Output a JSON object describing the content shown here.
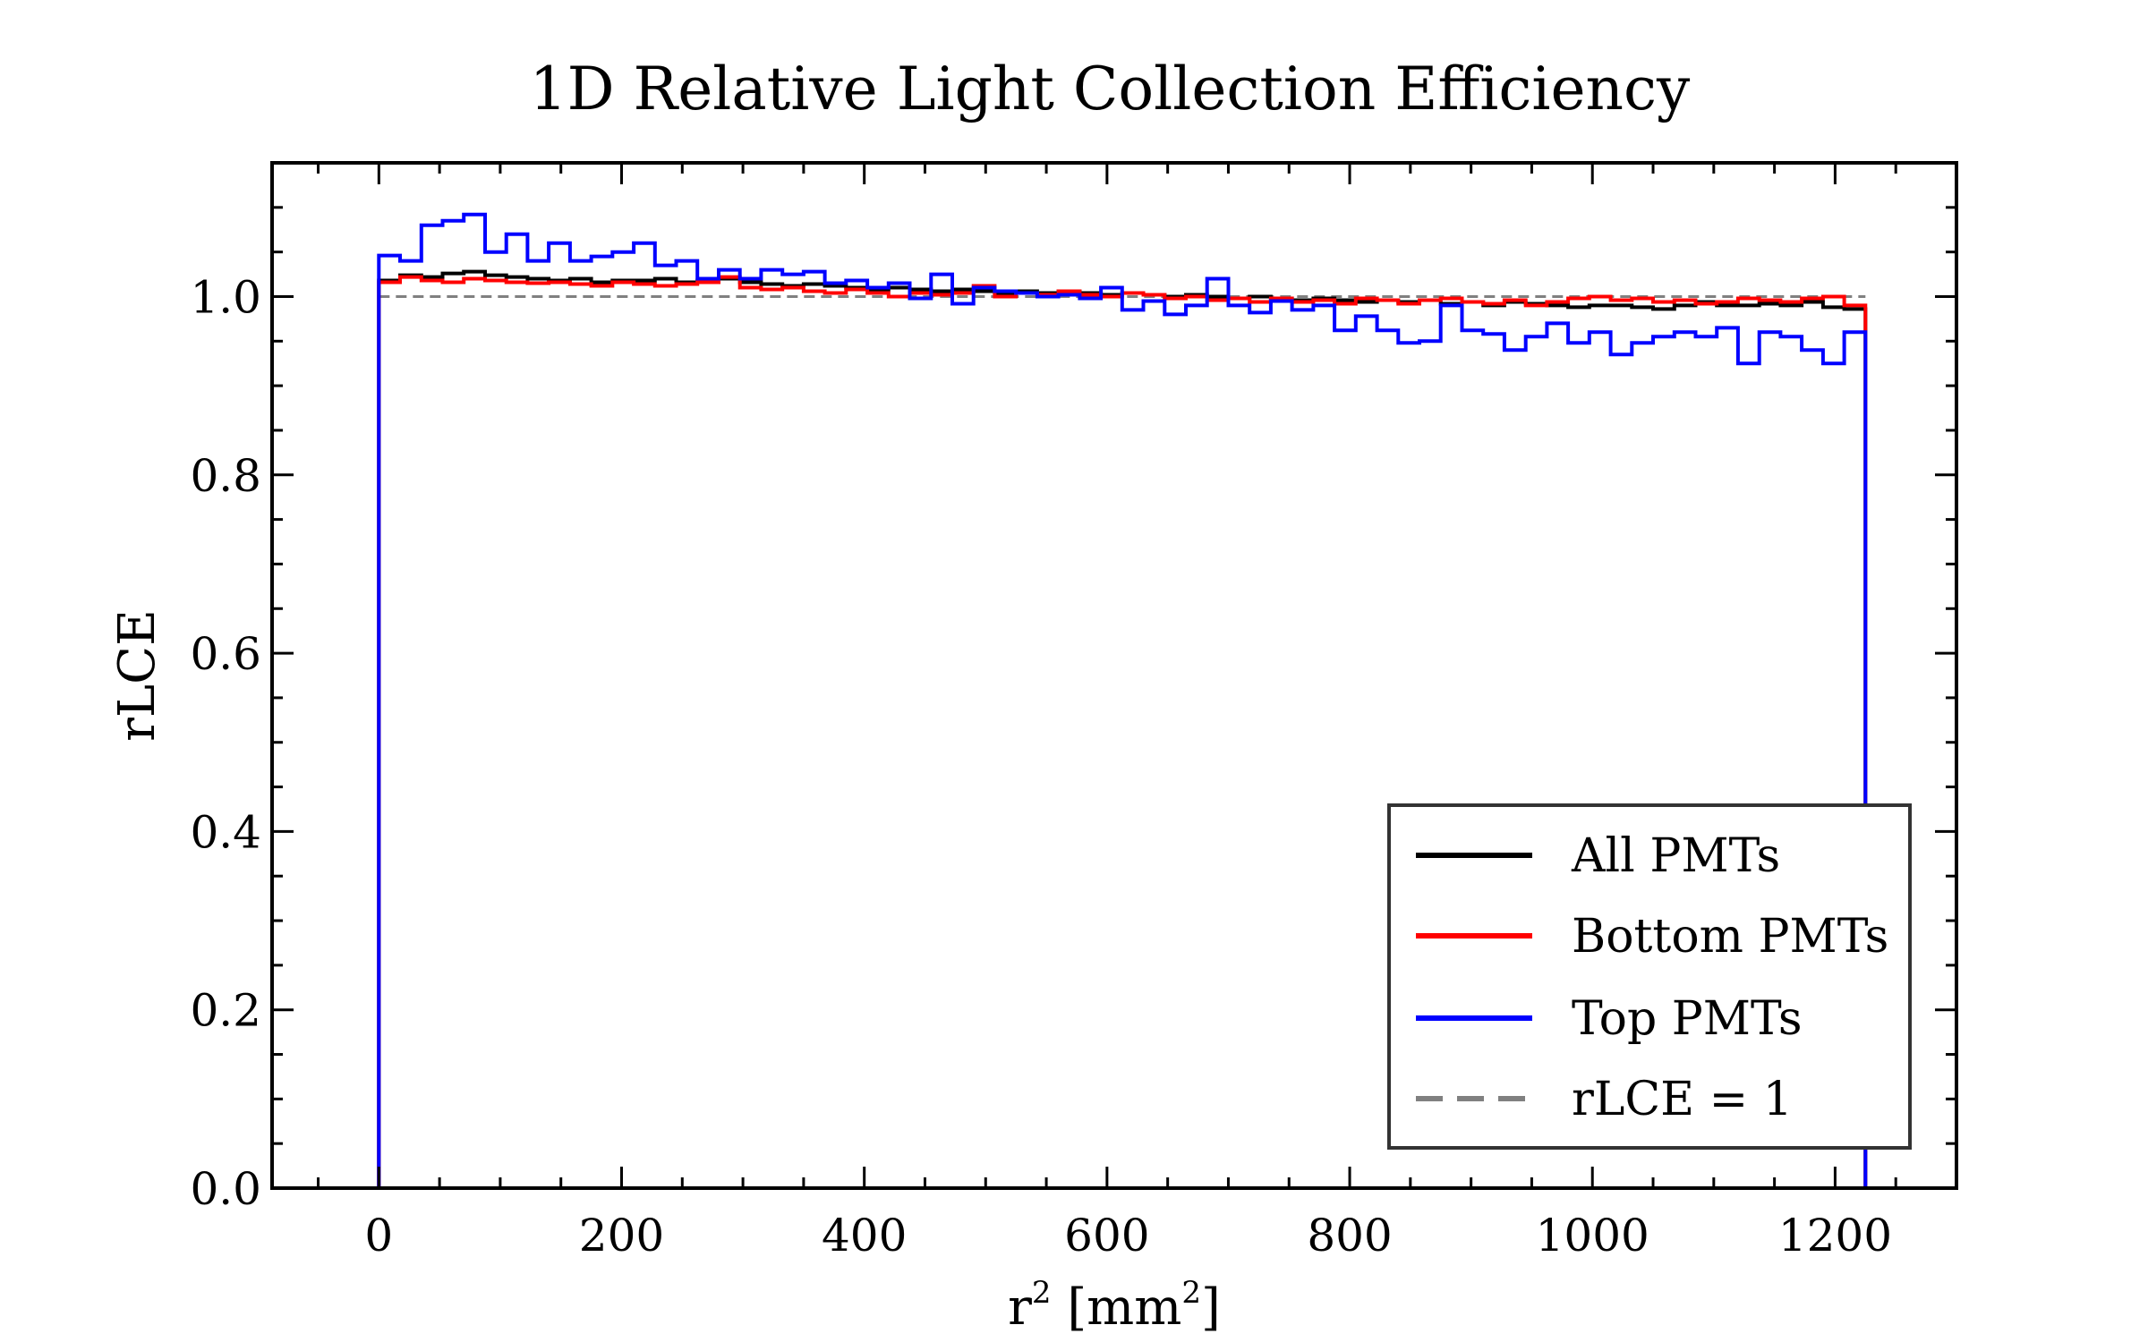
{
  "chart_data": {
    "type": "line",
    "style": "step-histogram",
    "title": "1D Relative Light Collection Efficiency",
    "xlabel": {
      "base": "r",
      "sup": "2",
      "unit_base": " [mm",
      "unit_sup": "2",
      "unit_close": "]"
    },
    "ylabel": "rLCE",
    "xlim": [
      -88,
      1300
    ],
    "ylim": [
      0,
      1.15
    ],
    "x_ticks": [
      0,
      200,
      400,
      600,
      800,
      1000,
      1200
    ],
    "x_tick_labels": [
      "0",
      "200",
      "400",
      "600",
      "800",
      "1000",
      "1200"
    ],
    "y_ticks": [
      0,
      0.2,
      0.4,
      0.6,
      0.8,
      1.0
    ],
    "y_tick_labels": [
      "0.0",
      "0.2",
      "0.4",
      "0.6",
      "0.8",
      "1.0"
    ],
    "grid": false,
    "legend": {
      "position": "bottom-right"
    },
    "bins": {
      "start": 0,
      "end": 1225,
      "count": 70
    },
    "reference_line": {
      "name": "rLCE = 1",
      "y": 1.0,
      "x_range": [
        0,
        1225
      ],
      "color": "#808080",
      "dash": true
    },
    "series": [
      {
        "name": "All PMTs",
        "color": "#000000",
        "values": [
          1.018,
          1.024,
          1.022,
          1.026,
          1.028,
          1.024,
          1.022,
          1.02,
          1.018,
          1.02,
          1.016,
          1.018,
          1.018,
          1.02,
          1.016,
          1.018,
          1.02,
          1.016,
          1.014,
          1.012,
          1.014,
          1.012,
          1.01,
          1.008,
          1.01,
          1.008,
          1.006,
          1.008,
          1.006,
          1.004,
          1.006,
          1.004,
          1.006,
          1.004,
          1.002,
          1.004,
          1.002,
          1.0,
          1.002,
          1.0,
          0.998,
          1.0,
          0.998,
          0.996,
          0.998,
          0.996,
          0.994,
          0.996,
          0.994,
          0.996,
          0.992,
          0.994,
          0.99,
          0.994,
          0.992,
          0.99,
          0.988,
          0.99,
          0.99,
          0.988,
          0.986,
          0.99,
          0.994,
          0.99,
          0.99,
          0.992,
          0.99,
          0.994,
          0.988,
          0.986
        ]
      },
      {
        "name": "Bottom PMTs",
        "color": "#ff0000",
        "values": [
          1.016,
          1.022,
          1.018,
          1.016,
          1.02,
          1.018,
          1.016,
          1.015,
          1.016,
          1.014,
          1.012,
          1.016,
          1.014,
          1.012,
          1.014,
          1.016,
          1.022,
          1.01,
          1.008,
          1.01,
          1.006,
          1.004,
          1.008,
          1.004,
          1.0,
          1.004,
          1.002,
          1.004,
          1.012,
          1.0,
          1.004,
          1.002,
          1.006,
          1.002,
          1.0,
          1.004,
          1.002,
          0.998,
          1.0,
          0.996,
          0.998,
          0.994,
          0.998,
          0.994,
          0.996,
          0.992,
          0.998,
          0.996,
          0.992,
          0.996,
          0.998,
          0.994,
          0.992,
          0.996,
          0.99,
          0.994,
          0.998,
          1.0,
          0.996,
          0.998,
          0.994,
          0.996,
          0.992,
          0.994,
          0.998,
          0.996,
          0.994,
          0.998,
          1.0,
          0.99
        ]
      },
      {
        "name": "Top PMTs",
        "color": "#0000ff",
        "values": [
          1.046,
          1.04,
          1.08,
          1.085,
          1.092,
          1.05,
          1.07,
          1.04,
          1.06,
          1.04,
          1.045,
          1.05,
          1.06,
          1.035,
          1.04,
          1.02,
          1.03,
          1.02,
          1.03,
          1.025,
          1.028,
          1.015,
          1.018,
          1.01,
          1.015,
          0.998,
          1.025,
          0.992,
          1.01,
          1.006,
          1.004,
          1.0,
          1.002,
          0.998,
          1.01,
          0.985,
          0.995,
          0.98,
          0.99,
          1.02,
          0.99,
          0.982,
          0.995,
          0.985,
          0.99,
          0.962,
          0.978,
          0.962,
          0.948,
          0.95,
          0.99,
          0.962,
          0.958,
          0.94,
          0.955,
          0.97,
          0.948,
          0.96,
          0.935,
          0.948,
          0.955,
          0.96,
          0.955,
          0.965,
          0.925,
          0.96,
          0.955,
          0.94,
          0.925,
          0.96
        ]
      },
      {
        "name": "rLCE = 1",
        "color": "#808080",
        "style": "dashed",
        "values": [
          1.0
        ]
      }
    ]
  }
}
